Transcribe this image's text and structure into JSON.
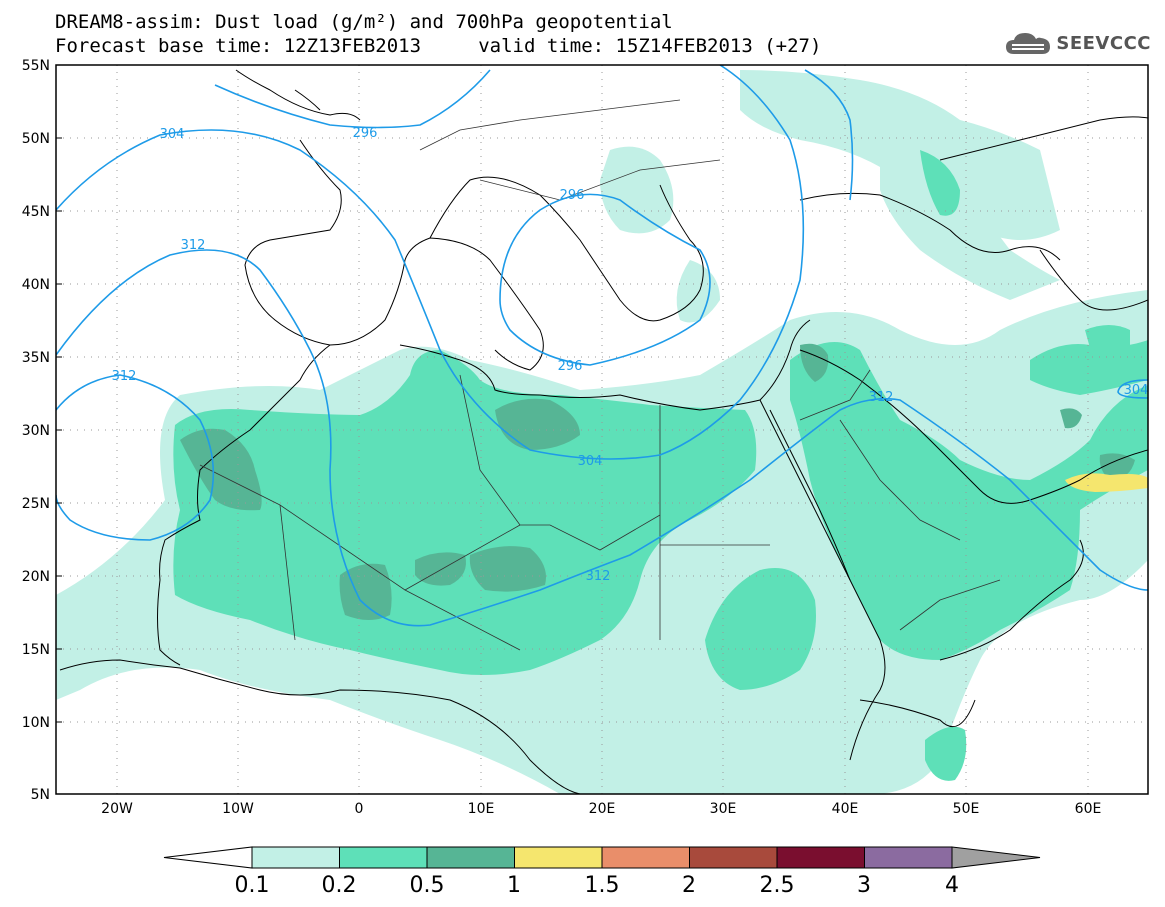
{
  "header": {
    "title": "DREAM8-assim: Dust load (g/m²) and 700hPa geopotential",
    "subtitle": "Forecast base time: 12Z13FEB2013     valid time: 15Z14FEB2013 (+27)",
    "logo_text": "SEEVCCC"
  },
  "map": {
    "lat_labels": [
      "55N",
      "50N",
      "45N",
      "40N",
      "35N",
      "30N",
      "25N",
      "20N",
      "15N",
      "10N",
      "5N"
    ],
    "lon_labels": [
      "20W",
      "10W",
      "0",
      "10E",
      "20E",
      "30E",
      "40E",
      "50E",
      "60E"
    ],
    "contour_labels": [
      "304",
      "296",
      "296",
      "312",
      "312",
      "296",
      "304",
      "312",
      "312",
      "304"
    ]
  },
  "legend": {
    "tick_labels": [
      "0.1",
      "0.2",
      "0.5",
      "1",
      "1.5",
      "2",
      "2.5",
      "3",
      "4"
    ],
    "colors": [
      "#ffffff",
      "#c2f0e6",
      "#5ee0b8",
      "#56b595",
      "#f5e66e",
      "#e98e6a",
      "#a84a3c",
      "#7a0e2f",
      "#8b6ba0",
      "#a0a0a0"
    ]
  },
  "colors": {
    "dust_low": "#c2f0e6",
    "dust_mid": "#5ee0b8",
    "dust_high": "#56b595",
    "dust_peak": "#f5e66e",
    "contour": "#1e9be8"
  }
}
